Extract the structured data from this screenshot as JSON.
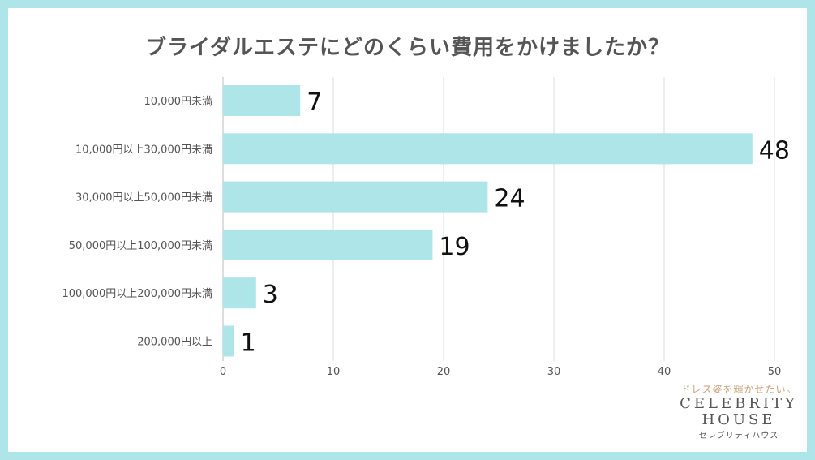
{
  "chart_data": {
    "type": "bar",
    "orientation": "horizontal",
    "title": "ブライダルエステにどのくらい費用をかけましたか？",
    "categories": [
      "10,000円未満",
      "10,000円以上30,000円未満",
      "30,000円以上50,000円未満",
      "50,000円以上100,000円未満",
      "100,000円以上200,000円未満",
      "200,000円以上"
    ],
    "values": [
      7,
      48,
      24,
      19,
      3,
      1
    ],
    "xlim": [
      0,
      50
    ],
    "xticks": [
      "0",
      "10",
      "20",
      "30",
      "40",
      "50"
    ],
    "grid": true,
    "bar_color": "#ade5e8"
  },
  "logo": {
    "tagline": "ドレス姿を輝かせたい。",
    "brand_line1": "CELEBRITY",
    "brand_line2": "HOUSE",
    "brand_kana": "セレブリティハウス"
  },
  "colors": {
    "frame": "#ade5e8",
    "text": "#555555",
    "grid": "#dddddd",
    "tagline": "#c9a27a"
  }
}
